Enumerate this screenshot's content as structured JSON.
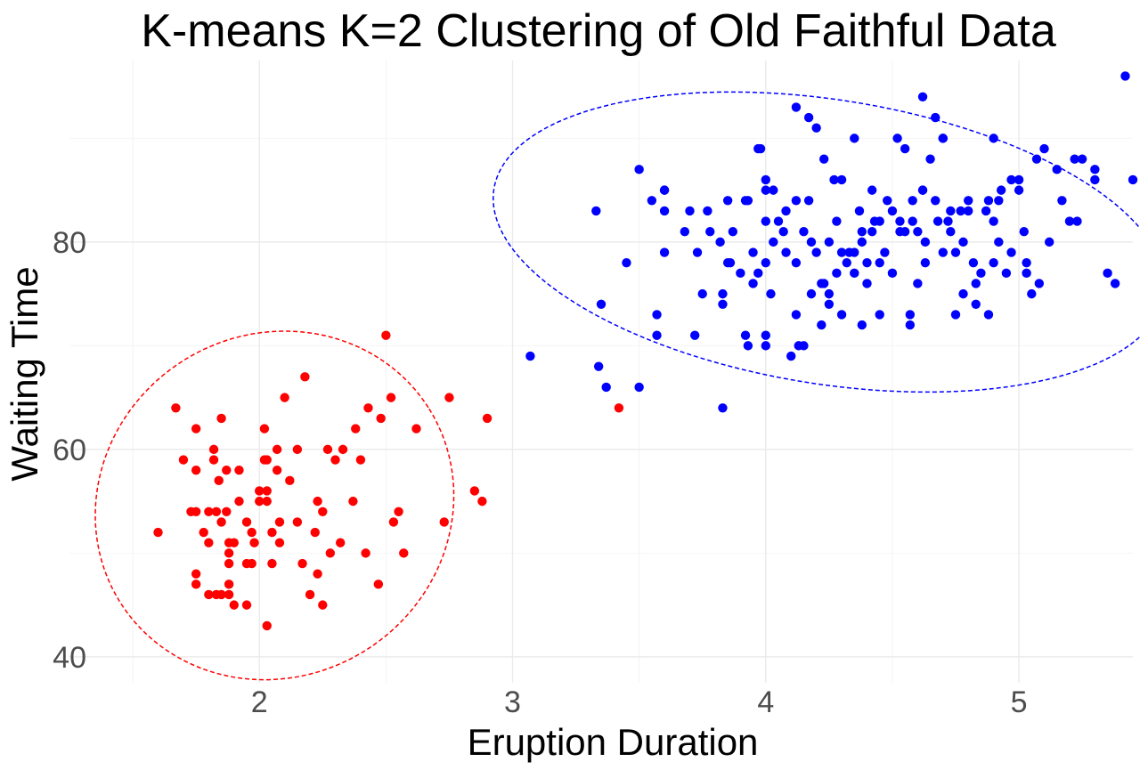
{
  "chart_data": {
    "type": "scatter",
    "title": "K-means K=2 Clustering of Old Faithful Data",
    "xlabel": "Eruption Duration",
    "ylabel": "Waiting Time",
    "xlim": [
      1.25,
      5.45
    ],
    "ylim": [
      37.5,
      97.5
    ],
    "x_ticks": [
      2,
      3,
      4,
      5
    ],
    "y_ticks": [
      40,
      60,
      80
    ],
    "grid": true,
    "legend": "none",
    "series": [
      {
        "color": "#ff0000",
        "ellipse": {
          "cx": 2.06,
          "cy": 54.6,
          "rx": 0.72,
          "ry": 16.5,
          "rotate_deg": -32
        },
        "points": [
          [
            1.6,
            52
          ],
          [
            1.67,
            64
          ],
          [
            1.7,
            59
          ],
          [
            1.73,
            54
          ],
          [
            1.75,
            54
          ],
          [
            1.75,
            62
          ],
          [
            1.75,
            58
          ],
          [
            1.75,
            48
          ],
          [
            1.75,
            47
          ],
          [
            1.78,
            52
          ],
          [
            1.8,
            54
          ],
          [
            1.8,
            51
          ],
          [
            1.8,
            46
          ],
          [
            1.82,
            60
          ],
          [
            1.82,
            59
          ],
          [
            1.83,
            54
          ],
          [
            1.83,
            46
          ],
          [
            1.84,
            57
          ],
          [
            1.85,
            63
          ],
          [
            1.85,
            46
          ],
          [
            1.85,
            53
          ],
          [
            1.87,
            54
          ],
          [
            1.87,
            58
          ],
          [
            1.88,
            51
          ],
          [
            1.88,
            50
          ],
          [
            1.88,
            49
          ],
          [
            1.88,
            47
          ],
          [
            1.88,
            46
          ],
          [
            1.9,
            45
          ],
          [
            1.9,
            51
          ],
          [
            1.92,
            55
          ],
          [
            1.92,
            58
          ],
          [
            1.95,
            53
          ],
          [
            1.95,
            49
          ],
          [
            1.95,
            45
          ],
          [
            1.97,
            49
          ],
          [
            1.97,
            52
          ],
          [
            1.98,
            51
          ],
          [
            2.0,
            56
          ],
          [
            2.0,
            55
          ],
          [
            2.02,
            62
          ],
          [
            2.02,
            59
          ],
          [
            2.03,
            59
          ],
          [
            2.03,
            56
          ],
          [
            2.03,
            55
          ],
          [
            2.03,
            43
          ],
          [
            2.05,
            52
          ],
          [
            2.05,
            49
          ],
          [
            2.07,
            60
          ],
          [
            2.07,
            58
          ],
          [
            2.08,
            53
          ],
          [
            2.08,
            51
          ],
          [
            2.1,
            65
          ],
          [
            2.12,
            57
          ],
          [
            2.15,
            60
          ],
          [
            2.15,
            53
          ],
          [
            2.17,
            49
          ],
          [
            2.18,
            67
          ],
          [
            2.2,
            46
          ],
          [
            2.22,
            52
          ],
          [
            2.23,
            48
          ],
          [
            2.23,
            55
          ],
          [
            2.25,
            45
          ],
          [
            2.25,
            54
          ],
          [
            2.27,
            60
          ],
          [
            2.28,
            50
          ],
          [
            2.3,
            59
          ],
          [
            2.32,
            51
          ],
          [
            2.33,
            60
          ],
          [
            2.37,
            55
          ],
          [
            2.38,
            62
          ],
          [
            2.4,
            59
          ],
          [
            2.42,
            50
          ],
          [
            2.43,
            64
          ],
          [
            2.47,
            47
          ],
          [
            2.48,
            63
          ],
          [
            2.5,
            71
          ],
          [
            2.52,
            65
          ],
          [
            2.53,
            53
          ],
          [
            2.55,
            54
          ],
          [
            2.57,
            50
          ],
          [
            2.62,
            62
          ],
          [
            2.73,
            53
          ],
          [
            2.75,
            65
          ],
          [
            2.85,
            56
          ],
          [
            2.88,
            55
          ],
          [
            2.9,
            63
          ],
          [
            3.42,
            64
          ]
        ]
      },
      {
        "color": "#0000ff",
        "ellipse": {
          "cx": 4.25,
          "cy": 80.0,
          "rx": 1.34,
          "ry": 13.7,
          "rotate_deg": 9
        },
        "points": [
          [
            3.07,
            69
          ],
          [
            3.33,
            83
          ],
          [
            3.34,
            68
          ],
          [
            3.35,
            74
          ],
          [
            3.37,
            66
          ],
          [
            3.45,
            78
          ],
          [
            3.5,
            87
          ],
          [
            3.5,
            66
          ],
          [
            3.57,
            73
          ],
          [
            3.57,
            71
          ],
          [
            3.6,
            85
          ],
          [
            3.6,
            83
          ],
          [
            3.6,
            79
          ],
          [
            3.68,
            81
          ],
          [
            3.72,
            71
          ],
          [
            3.73,
            79
          ],
          [
            3.75,
            75
          ],
          [
            3.77,
            83
          ],
          [
            3.78,
            81
          ],
          [
            3.82,
            80
          ],
          [
            3.83,
            75
          ],
          [
            3.83,
            74
          ],
          [
            3.83,
            64
          ],
          [
            3.85,
            84
          ],
          [
            3.85,
            78
          ],
          [
            3.86,
            78
          ],
          [
            3.9,
            77
          ],
          [
            3.92,
            84
          ],
          [
            3.92,
            71
          ],
          [
            3.93,
            70
          ],
          [
            3.95,
            79
          ],
          [
            3.95,
            76
          ],
          [
            3.97,
            89
          ],
          [
            3.97,
            77
          ],
          [
            4.0,
            86
          ],
          [
            4.0,
            85
          ],
          [
            4.0,
            82
          ],
          [
            4.0,
            78
          ],
          [
            4.0,
            71
          ],
          [
            4.0,
            70
          ],
          [
            4.02,
            75
          ],
          [
            4.03,
            80
          ],
          [
            4.05,
            82
          ],
          [
            4.07,
            81
          ],
          [
            4.08,
            79
          ],
          [
            4.1,
            69
          ],
          [
            4.12,
            93
          ],
          [
            4.12,
            84
          ],
          [
            4.12,
            78
          ],
          [
            4.12,
            73
          ],
          [
            4.13,
            70
          ],
          [
            4.15,
            81
          ],
          [
            4.15,
            70
          ],
          [
            4.17,
            84
          ],
          [
            4.18,
            80
          ],
          [
            4.2,
            91
          ],
          [
            4.2,
            79
          ],
          [
            4.22,
            76
          ],
          [
            4.23,
            88
          ],
          [
            4.25,
            80
          ],
          [
            4.25,
            75
          ],
          [
            4.25,
            74
          ],
          [
            4.27,
            86
          ],
          [
            4.28,
            82
          ],
          [
            4.3,
            86
          ],
          [
            4.3,
            79
          ],
          [
            4.32,
            78
          ],
          [
            4.35,
            79
          ],
          [
            4.35,
            77
          ],
          [
            4.37,
            83
          ],
          [
            4.38,
            80
          ],
          [
            4.4,
            78
          ],
          [
            4.4,
            76
          ],
          [
            4.42,
            81
          ],
          [
            4.45,
            82
          ],
          [
            4.45,
            78
          ],
          [
            4.47,
            79
          ],
          [
            4.5,
            83
          ],
          [
            4.5,
            77
          ],
          [
            4.52,
            90
          ],
          [
            4.53,
            81
          ],
          [
            4.55,
            89
          ],
          [
            4.55,
            81
          ],
          [
            4.57,
            73
          ],
          [
            4.57,
            72
          ],
          [
            4.58,
            82
          ],
          [
            4.6,
            81
          ],
          [
            4.6,
            76
          ],
          [
            4.62,
            85
          ],
          [
            4.63,
            80
          ],
          [
            4.63,
            78
          ],
          [
            4.65,
            88
          ],
          [
            4.67,
            92
          ],
          [
            4.68,
            82
          ],
          [
            4.7,
            90
          ],
          [
            4.7,
            90
          ],
          [
            4.7,
            79
          ],
          [
            4.73,
            83
          ],
          [
            4.73,
            81
          ],
          [
            4.75,
            79
          ],
          [
            4.77,
            83
          ],
          [
            4.78,
            80
          ],
          [
            4.8,
            83
          ],
          [
            4.8,
            84
          ],
          [
            4.82,
            78
          ],
          [
            4.83,
            74
          ],
          [
            4.85,
            77
          ],
          [
            4.87,
            83
          ],
          [
            4.88,
            84
          ],
          [
            4.88,
            73
          ],
          [
            4.9,
            90
          ],
          [
            4.9,
            78
          ],
          [
            4.92,
            84
          ],
          [
            4.92,
            80
          ],
          [
            4.93,
            85
          ],
          [
            4.95,
            77
          ],
          [
            4.97,
            79
          ],
          [
            5.0,
            85
          ],
          [
            5.0,
            86
          ],
          [
            5.02,
            81
          ],
          [
            5.03,
            78
          ],
          [
            5.05,
            75
          ],
          [
            5.07,
            88
          ],
          [
            5.1,
            89
          ],
          [
            5.12,
            80
          ],
          [
            5.15,
            87
          ],
          [
            5.17,
            84
          ],
          [
            5.2,
            82
          ],
          [
            5.23,
            82
          ],
          [
            5.25,
            88
          ],
          [
            5.3,
            87
          ],
          [
            5.35,
            77
          ],
          [
            5.38,
            76
          ],
          [
            5.42,
            96
          ],
          [
            5.45,
            86
          ],
          [
            5.3,
            86
          ],
          [
            5.22,
            88
          ],
          [
            4.62,
            94
          ],
          [
            4.42,
            85
          ],
          [
            4.35,
            90
          ],
          [
            4.17,
            92
          ],
          [
            3.98,
            89
          ],
          [
            3.55,
            84
          ],
          [
            3.6,
            85
          ],
          [
            3.7,
            83
          ],
          [
            4.83,
            76
          ],
          [
            4.78,
            75
          ],
          [
            4.75,
            73
          ],
          [
            4.62,
            85
          ],
          [
            4.58,
            84
          ],
          [
            4.53,
            82
          ],
          [
            4.48,
            84
          ],
          [
            4.43,
            82
          ],
          [
            4.38,
            81
          ],
          [
            4.33,
            79
          ],
          [
            4.28,
            77
          ],
          [
            4.23,
            76
          ],
          [
            4.18,
            75
          ],
          [
            4.08,
            83
          ],
          [
            4.03,
            85
          ],
          [
            3.93,
            84
          ],
          [
            3.87,
            81
          ],
          [
            4.45,
            73
          ],
          [
            4.38,
            72
          ],
          [
            4.3,
            73
          ],
          [
            4.22,
            72
          ],
          [
            4.67,
            84
          ],
          [
            4.72,
            82
          ],
          [
            4.9,
            82
          ],
          [
            4.97,
            86
          ],
          [
            5.03,
            77
          ],
          [
            5.08,
            76
          ]
        ]
      }
    ]
  }
}
